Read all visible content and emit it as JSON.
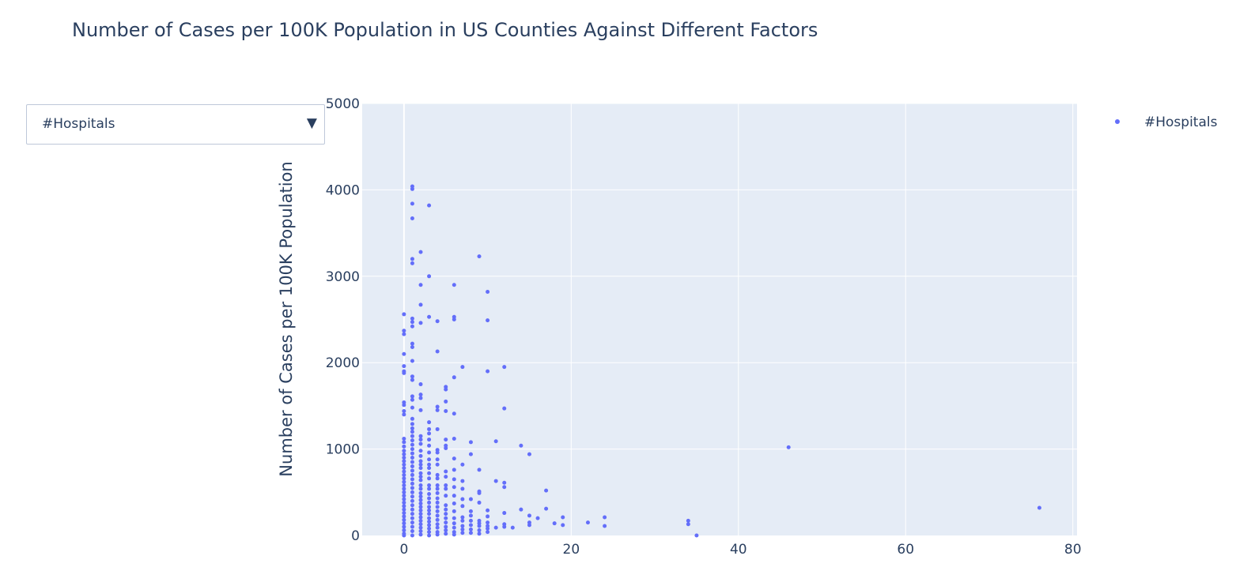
{
  "chart_data": {
    "type": "scatter",
    "title": "Number of Cases per 100K Population in US Counties Against Different Factors",
    "xlabel": "",
    "ylabel": "Number of Cases per 100K Population",
    "xlim": [
      -5,
      80.5
    ],
    "ylim": [
      0,
      5000
    ],
    "x_ticks": [
      0,
      20,
      40,
      60,
      80
    ],
    "y_ticks": [
      0,
      1000,
      2000,
      3000,
      4000,
      5000
    ],
    "grid": true,
    "legend_position": "top-right",
    "series": [
      {
        "name": "#Hospitals",
        "color": "#636efa",
        "points": [
          [
            0,
            2560
          ],
          [
            0,
            2370
          ],
          [
            0,
            2330
          ],
          [
            0,
            2100
          ],
          [
            0,
            1960
          ],
          [
            0,
            1900
          ],
          [
            0,
            1880
          ],
          [
            0,
            1540
          ],
          [
            0,
            1510
          ],
          [
            0,
            1440
          ],
          [
            0,
            1400
          ],
          [
            0,
            1120
          ],
          [
            0,
            1080
          ],
          [
            0,
            1030
          ],
          [
            0,
            980
          ],
          [
            0,
            940
          ],
          [
            0,
            900
          ],
          [
            0,
            860
          ],
          [
            0,
            820
          ],
          [
            0,
            780
          ],
          [
            0,
            740
          ],
          [
            0,
            700
          ],
          [
            0,
            660
          ],
          [
            0,
            620
          ],
          [
            0,
            580
          ],
          [
            0,
            540
          ],
          [
            0,
            500
          ],
          [
            0,
            460
          ],
          [
            0,
            420
          ],
          [
            0,
            380
          ],
          [
            0,
            340
          ],
          [
            0,
            300
          ],
          [
            0,
            260
          ],
          [
            0,
            220
          ],
          [
            0,
            180
          ],
          [
            0,
            140
          ],
          [
            0,
            100
          ],
          [
            0,
            60
          ],
          [
            0,
            20
          ],
          [
            0,
            0
          ],
          [
            1,
            4040
          ],
          [
            1,
            4010
          ],
          [
            1,
            3840
          ],
          [
            1,
            3670
          ],
          [
            1,
            3200
          ],
          [
            1,
            3150
          ],
          [
            1,
            2510
          ],
          [
            1,
            2470
          ],
          [
            1,
            2420
          ],
          [
            1,
            2220
          ],
          [
            1,
            2180
          ],
          [
            1,
            2020
          ],
          [
            1,
            1840
          ],
          [
            1,
            1800
          ],
          [
            1,
            1610
          ],
          [
            1,
            1570
          ],
          [
            1,
            1480
          ],
          [
            1,
            1350
          ],
          [
            1,
            1290
          ],
          [
            1,
            1240
          ],
          [
            1,
            1200
          ],
          [
            1,
            1150
          ],
          [
            1,
            1100
          ],
          [
            1,
            1050
          ],
          [
            1,
            1000
          ],
          [
            1,
            950
          ],
          [
            1,
            900
          ],
          [
            1,
            850
          ],
          [
            1,
            800
          ],
          [
            1,
            750
          ],
          [
            1,
            700
          ],
          [
            1,
            650
          ],
          [
            1,
            600
          ],
          [
            1,
            550
          ],
          [
            1,
            500
          ],
          [
            1,
            450
          ],
          [
            1,
            400
          ],
          [
            1,
            350
          ],
          [
            1,
            300
          ],
          [
            1,
            250
          ],
          [
            1,
            200
          ],
          [
            1,
            150
          ],
          [
            1,
            100
          ],
          [
            1,
            50
          ],
          [
            1,
            0
          ],
          [
            2,
            3280
          ],
          [
            2,
            2900
          ],
          [
            2,
            2670
          ],
          [
            2,
            2460
          ],
          [
            2,
            1750
          ],
          [
            2,
            1630
          ],
          [
            2,
            1590
          ],
          [
            2,
            1450
          ],
          [
            2,
            1150
          ],
          [
            2,
            1110
          ],
          [
            2,
            1060
          ],
          [
            2,
            980
          ],
          [
            2,
            920
          ],
          [
            2,
            860
          ],
          [
            2,
            820
          ],
          [
            2,
            780
          ],
          [
            2,
            720
          ],
          [
            2,
            680
          ],
          [
            2,
            640
          ],
          [
            2,
            580
          ],
          [
            2,
            540
          ],
          [
            2,
            490
          ],
          [
            2,
            450
          ],
          [
            2,
            410
          ],
          [
            2,
            370
          ],
          [
            2,
            330
          ],
          [
            2,
            290
          ],
          [
            2,
            250
          ],
          [
            2,
            210
          ],
          [
            2,
            170
          ],
          [
            2,
            130
          ],
          [
            2,
            90
          ],
          [
            2,
            50
          ],
          [
            2,
            10
          ],
          [
            3,
            3820
          ],
          [
            3,
            3000
          ],
          [
            3,
            2530
          ],
          [
            3,
            1310
          ],
          [
            3,
            1230
          ],
          [
            3,
            1180
          ],
          [
            3,
            1110
          ],
          [
            3,
            1040
          ],
          [
            3,
            960
          ],
          [
            3,
            880
          ],
          [
            3,
            820
          ],
          [
            3,
            780
          ],
          [
            3,
            720
          ],
          [
            3,
            660
          ],
          [
            3,
            580
          ],
          [
            3,
            540
          ],
          [
            3,
            480
          ],
          [
            3,
            430
          ],
          [
            3,
            380
          ],
          [
            3,
            330
          ],
          [
            3,
            290
          ],
          [
            3,
            250
          ],
          [
            3,
            200
          ],
          [
            3,
            160
          ],
          [
            3,
            120
          ],
          [
            3,
            80
          ],
          [
            3,
            40
          ],
          [
            3,
            0
          ],
          [
            4,
            2480
          ],
          [
            4,
            2130
          ],
          [
            4,
            1490
          ],
          [
            4,
            1450
          ],
          [
            4,
            1230
          ],
          [
            4,
            990
          ],
          [
            4,
            960
          ],
          [
            4,
            880
          ],
          [
            4,
            820
          ],
          [
            4,
            700
          ],
          [
            4,
            660
          ],
          [
            4,
            580
          ],
          [
            4,
            540
          ],
          [
            4,
            490
          ],
          [
            4,
            430
          ],
          [
            4,
            380
          ],
          [
            4,
            330
          ],
          [
            4,
            280
          ],
          [
            4,
            230
          ],
          [
            4,
            180
          ],
          [
            4,
            130
          ],
          [
            4,
            90
          ],
          [
            4,
            40
          ],
          [
            4,
            10
          ],
          [
            5,
            1720
          ],
          [
            5,
            1690
          ],
          [
            5,
            1550
          ],
          [
            5,
            1440
          ],
          [
            5,
            1110
          ],
          [
            5,
            1040
          ],
          [
            5,
            1010
          ],
          [
            5,
            740
          ],
          [
            5,
            680
          ],
          [
            5,
            580
          ],
          [
            5,
            540
          ],
          [
            5,
            460
          ],
          [
            5,
            350
          ],
          [
            5,
            300
          ],
          [
            5,
            250
          ],
          [
            5,
            200
          ],
          [
            5,
            150
          ],
          [
            5,
            100
          ],
          [
            5,
            60
          ],
          [
            5,
            20
          ],
          [
            6,
            2900
          ],
          [
            6,
            2530
          ],
          [
            6,
            2500
          ],
          [
            6,
            1830
          ],
          [
            6,
            1410
          ],
          [
            6,
            1120
          ],
          [
            6,
            890
          ],
          [
            6,
            760
          ],
          [
            6,
            650
          ],
          [
            6,
            560
          ],
          [
            6,
            460
          ],
          [
            6,
            370
          ],
          [
            6,
            280
          ],
          [
            6,
            200
          ],
          [
            6,
            140
          ],
          [
            6,
            90
          ],
          [
            6,
            40
          ],
          [
            6,
            10
          ],
          [
            7,
            1950
          ],
          [
            7,
            820
          ],
          [
            7,
            630
          ],
          [
            7,
            540
          ],
          [
            7,
            420
          ],
          [
            7,
            340
          ],
          [
            7,
            210
          ],
          [
            7,
            170
          ],
          [
            7,
            110
          ],
          [
            7,
            70
          ],
          [
            7,
            30
          ],
          [
            8,
            1080
          ],
          [
            8,
            940
          ],
          [
            8,
            420
          ],
          [
            8,
            280
          ],
          [
            8,
            230
          ],
          [
            8,
            170
          ],
          [
            8,
            120
          ],
          [
            8,
            70
          ],
          [
            8,
            30
          ],
          [
            9,
            3230
          ],
          [
            9,
            760
          ],
          [
            9,
            510
          ],
          [
            9,
            490
          ],
          [
            9,
            380
          ],
          [
            9,
            170
          ],
          [
            9,
            140
          ],
          [
            9,
            110
          ],
          [
            9,
            60
          ],
          [
            9,
            20
          ],
          [
            10,
            2820
          ],
          [
            10,
            2490
          ],
          [
            10,
            1900
          ],
          [
            10,
            290
          ],
          [
            10,
            220
          ],
          [
            10,
            150
          ],
          [
            10,
            110
          ],
          [
            10,
            80
          ],
          [
            10,
            40
          ],
          [
            11,
            1090
          ],
          [
            11,
            630
          ],
          [
            11,
            90
          ],
          [
            12,
            1950
          ],
          [
            12,
            1470
          ],
          [
            12,
            610
          ],
          [
            12,
            560
          ],
          [
            12,
            260
          ],
          [
            12,
            130
          ],
          [
            12,
            100
          ],
          [
            13,
            90
          ],
          [
            14,
            1040
          ],
          [
            14,
            300
          ],
          [
            15,
            940
          ],
          [
            15,
            230
          ],
          [
            15,
            150
          ],
          [
            15,
            120
          ],
          [
            16,
            200
          ],
          [
            17,
            520
          ],
          [
            17,
            310
          ],
          [
            18,
            140
          ],
          [
            19,
            210
          ],
          [
            19,
            120
          ],
          [
            22,
            150
          ],
          [
            24,
            210
          ],
          [
            24,
            110
          ],
          [
            34,
            170
          ],
          [
            34,
            130
          ],
          [
            35,
            0
          ],
          [
            46,
            1020
          ],
          [
            76,
            320
          ]
        ]
      }
    ]
  },
  "dropdown": {
    "selected": "#Hospitals",
    "arrow": "▼"
  },
  "legend": {
    "items": [
      {
        "label": "#Hospitals",
        "color": "#636efa"
      }
    ]
  },
  "colors": {
    "plot_bg": "#e5ecf6",
    "grid": "#ffffff",
    "text": "#2a3f5f",
    "marker": "#636efa"
  }
}
